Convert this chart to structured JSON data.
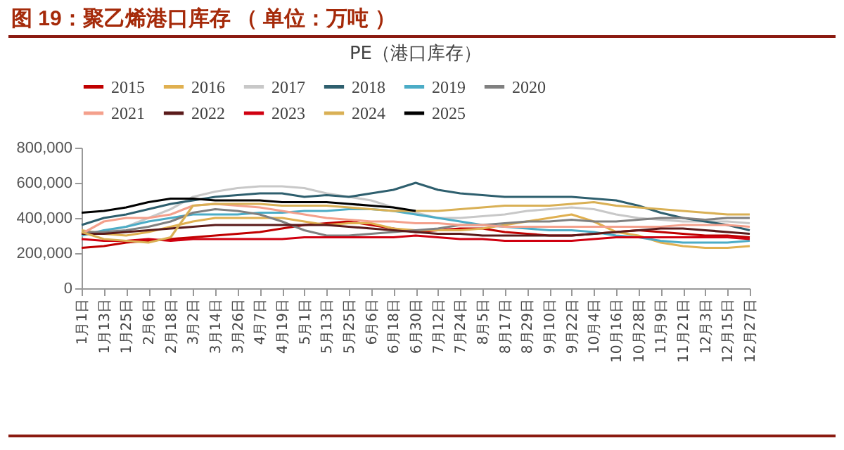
{
  "chart_data": {
    "type": "line",
    "title": "图 19：聚乙烯港口库存 （ 单位：万吨 ）",
    "subtitle": "PE（港口库存）",
    "categories": [
      "1月1日",
      "1月13日",
      "1月25日",
      "2月6日",
      "2月18日",
      "3月2日",
      "3月14日",
      "3月26日",
      "4月7日",
      "4月19日",
      "5月1日",
      "5月13日",
      "5月25日",
      "6月6日",
      "6月18日",
      "6月30日",
      "7月12日",
      "7月24日",
      "8月5日",
      "8月17日",
      "8月29日",
      "9月10日",
      "9月22日",
      "10月4日",
      "10月16日",
      "10月28日",
      "11月9日",
      "11月21日",
      "12月3日",
      "12月15日",
      "12月27日"
    ],
    "series": [
      {
        "name": "2015",
        "color": "#c00000",
        "values": [
          230000,
          240000,
          260000,
          270000,
          280000,
          290000,
          300000,
          310000,
          320000,
          340000,
          360000,
          370000,
          380000,
          360000,
          340000,
          320000,
          330000,
          340000,
          340000,
          320000,
          310000,
          300000,
          300000,
          310000,
          320000,
          330000,
          320000,
          310000,
          300000,
          300000,
          290000
        ]
      },
      {
        "name": "2016",
        "color": "#e0b050",
        "values": [
          330000,
          310000,
          300000,
          320000,
          350000,
          380000,
          400000,
          400000,
          400000,
          400000,
          380000,
          360000,
          370000,
          370000,
          340000,
          330000,
          330000,
          330000,
          340000,
          360000,
          380000,
          400000,
          420000,
          380000,
          320000,
          300000,
          260000,
          240000,
          230000,
          230000,
          240000
        ]
      },
      {
        "name": "2017",
        "color": "#c8c8c8",
        "values": [
          300000,
          320000,
          350000,
          400000,
          450000,
          520000,
          550000,
          570000,
          580000,
          580000,
          570000,
          540000,
          520000,
          500000,
          460000,
          430000,
          400000,
          400000,
          410000,
          420000,
          440000,
          450000,
          460000,
          450000,
          420000,
          400000,
          390000,
          380000,
          380000,
          380000,
          370000
        ]
      },
      {
        "name": "2018",
        "color": "#2e5f6e",
        "values": [
          360000,
          400000,
          420000,
          450000,
          480000,
          500000,
          520000,
          530000,
          540000,
          540000,
          520000,
          530000,
          520000,
          540000,
          560000,
          600000,
          560000,
          540000,
          530000,
          520000,
          520000,
          520000,
          520000,
          510000,
          500000,
          470000,
          430000,
          400000,
          380000,
          360000,
          330000
        ]
      },
      {
        "name": "2019",
        "color": "#4bacc6",
        "values": [
          300000,
          330000,
          350000,
          380000,
          400000,
          420000,
          420000,
          420000,
          430000,
          430000,
          440000,
          440000,
          450000,
          450000,
          440000,
          420000,
          400000,
          380000,
          360000,
          350000,
          340000,
          330000,
          330000,
          320000,
          300000,
          290000,
          270000,
          260000,
          260000,
          260000,
          270000
        ]
      },
      {
        "name": "2020",
        "color": "#808080",
        "values": [
          320000,
          320000,
          330000,
          350000,
          380000,
          430000,
          450000,
          440000,
          420000,
          380000,
          330000,
          300000,
          300000,
          310000,
          320000,
          330000,
          340000,
          360000,
          360000,
          370000,
          380000,
          380000,
          390000,
          380000,
          380000,
          390000,
          400000,
          400000,
          390000,
          400000,
          400000
        ]
      },
      {
        "name": "2021",
        "color": "#f4a08c",
        "values": [
          310000,
          380000,
          400000,
          400000,
          420000,
          470000,
          480000,
          470000,
          460000,
          440000,
          420000,
          400000,
          390000,
          380000,
          380000,
          370000,
          370000,
          360000,
          360000,
          350000,
          350000,
          350000,
          350000,
          350000,
          350000,
          350000,
          350000,
          360000,
          360000,
          360000,
          350000
        ]
      },
      {
        "name": "2022",
        "color": "#5a1a1a",
        "values": [
          310000,
          310000,
          320000,
          330000,
          340000,
          350000,
          360000,
          360000,
          360000,
          360000,
          360000,
          360000,
          350000,
          340000,
          330000,
          320000,
          310000,
          310000,
          300000,
          300000,
          300000,
          300000,
          300000,
          310000,
          320000,
          330000,
          340000,
          340000,
          330000,
          320000,
          310000
        ]
      },
      {
        "name": "2023",
        "color": "#d00010",
        "values": [
          280000,
          270000,
          270000,
          280000,
          270000,
          280000,
          280000,
          280000,
          280000,
          280000,
          290000,
          290000,
          290000,
          290000,
          290000,
          300000,
          290000,
          280000,
          280000,
          270000,
          270000,
          270000,
          270000,
          280000,
          290000,
          290000,
          290000,
          290000,
          290000,
          290000,
          280000
        ]
      },
      {
        "name": "2024",
        "color": "#d9b055",
        "values": [
          320000,
          280000,
          270000,
          260000,
          290000,
          470000,
          480000,
          480000,
          480000,
          470000,
          470000,
          470000,
          460000,
          450000,
          440000,
          440000,
          440000,
          450000,
          460000,
          470000,
          470000,
          470000,
          480000,
          490000,
          470000,
          460000,
          450000,
          440000,
          430000,
          420000,
          420000
        ]
      },
      {
        "name": "2025",
        "color": "#000000",
        "values": [
          430000,
          440000,
          460000,
          490000,
          510000,
          510000,
          500000,
          500000,
          500000,
          490000,
          490000,
          490000,
          480000,
          470000,
          460000,
          440000,
          null,
          null,
          null,
          null,
          null,
          null,
          null,
          null,
          null,
          null,
          null,
          null,
          null,
          null,
          null
        ]
      }
    ],
    "ylim": [
      0,
      800000
    ],
    "yticks": [
      0,
      {
        "value": 200000,
        "label": "200,000"
      },
      {
        "value": 400000,
        "label": "400,000"
      },
      {
        "value": 600000,
        "label": "600,000"
      },
      {
        "value": 800000,
        "label": "800,000"
      }
    ],
    "grid": false,
    "legend": "top",
    "marker": "none",
    "line_style": "solid"
  }
}
